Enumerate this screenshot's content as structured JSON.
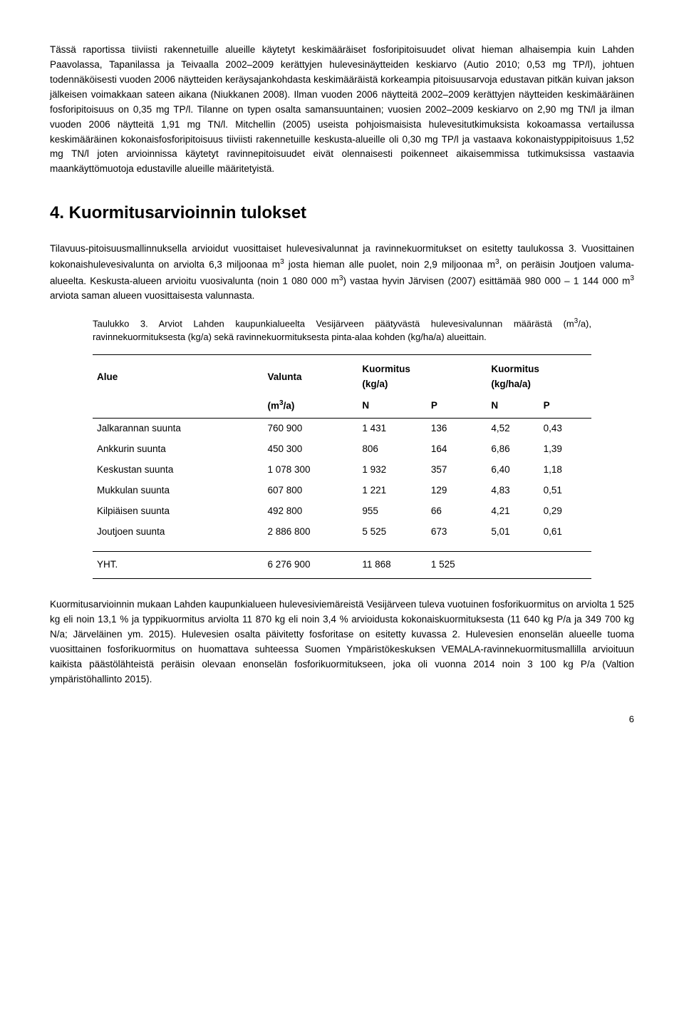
{
  "para1": "Tässä raportissa tiiviisti rakennetuille alueille käytetyt keskimääräiset fosforipitoisuudet olivat hieman alhaisempia kuin Lahden Paavolassa, Tapanilassa ja Teivaalla 2002–2009 kerättyjen hulevesinäytteiden keskiarvo (Autio 2010; 0,53 mg TP/l), johtuen todennäköisesti vuoden 2006 näytteiden keräysajankohdasta keskimääräistä korkeampia pitoisuusarvoja edustavan pitkän kuivan jakson jälkeisen voimakkaan sateen aikana (Niukkanen 2008). Ilman vuoden 2006 näytteitä 2002–2009 kerättyjen näytteiden keskimääräinen fosforipitoisuus on 0,35 mg TP/l. Tilanne on typen osalta samansuuntainen; vuosien 2002–2009 keskiarvo on 2,90 mg TN/l ja ilman vuoden 2006 näytteitä 1,91 mg TN/l. Mitchellin (2005) useista pohjoismaisista hulevesitutkimuksista kokoamassa vertailussa keskimääräinen kokonaisfosforipitoisuus tiiviisti rakennetuille keskusta-alueille oli 0,30 mg TP/l ja vastaava kokonaistyppipitoisuus 1,52 mg TN/l joten arvioinnissa käytetyt ravinnepitoisuudet eivät olennaisesti poikenneet aikaisemmissa tutkimuksissa vastaavia maankäyttömuotoja edustaville alueille määritetyistä.",
  "section_heading": "4. Kuormitusarvioinnin tulokset",
  "para2_a": "Tilavuus-pitoisuusmallinnuksella arvioidut vuosittaiset hulevesivalunnat ja ravinnekuormitukset on esitetty taulukossa 3. Vuosittainen kokonaishulevesivalunta on arviolta 6,3 miljoonaa m",
  "para2_b": " josta hieman alle puolet, noin 2,9 miljoonaa m",
  "para2_c": ", on peräisin Joutjoen valuma-alueelta. Keskusta-alueen arvioitu vuosivalunta (noin 1 080 000 m",
  "para2_d": ") vastaa hyvin Järvisen (2007) esittämää 980 000 – 1 144 000 m",
  "para2_e": " arviota saman alueen vuosittaisesta valunnasta.",
  "table": {
    "caption_a": "Taulukko 3. Arviot Lahden kaupunkialueelta Vesijärveen päätyvästä hulevesivalunnan määrästä (m",
    "caption_b": "/a), ravinnekuormituksesta (kg/a) sekä ravinnekuormituksesta pinta-alaa kohden (kg/ha/a) alueittain.",
    "columns": {
      "alue": "Alue",
      "valunta": "Valunta",
      "valunta_unit_a": "(m",
      "valunta_unit_b": "/a)",
      "kuormitus1": "Kuormitus",
      "kuormitus1_unit": "(kg/a)",
      "kuormitus2": "Kuormitus",
      "kuormitus2_unit": "(kg/ha/a)",
      "n": "N",
      "p": "P"
    },
    "rows": [
      {
        "alue": "Jalkarannan suunta",
        "valunta": "760 900",
        "n1": "1 431",
        "p1": "136",
        "n2": "4,52",
        "p2": "0,43"
      },
      {
        "alue": "Ankkurin suunta",
        "valunta": "450 300",
        "n1": "806",
        "p1": "164",
        "n2": "6,86",
        "p2": "1,39"
      },
      {
        "alue": "Keskustan suunta",
        "valunta": "1 078 300",
        "n1": "1 932",
        "p1": "357",
        "n2": "6,40",
        "p2": "1,18"
      },
      {
        "alue": "Mukkulan suunta",
        "valunta": "607 800",
        "n1": "1 221",
        "p1": "129",
        "n2": "4,83",
        "p2": "0,51"
      },
      {
        "alue": "Kilpiäisen suunta",
        "valunta": "492 800",
        "n1": "955",
        "p1": "66",
        "n2": "4,21",
        "p2": "0,29"
      },
      {
        "alue": "Joutjoen suunta",
        "valunta": "2 886 800",
        "n1": "5 525",
        "p1": "673",
        "n2": "5,01",
        "p2": "0,61"
      }
    ],
    "total": {
      "alue": "YHT.",
      "valunta": "6 276 900",
      "n1": "11 868",
      "p1": "1 525",
      "n2": "",
      "p2": ""
    }
  },
  "para3": "Kuormitusarvioinnin mukaan Lahden kaupunkialueen hulevesiviemäreistä Vesijärveen tuleva vuotuinen fosforikuormitus on arviolta 1 525 kg eli noin 13,1 % ja typpikuormitus arviolta 11 870 kg eli noin 3,4 % arvioidusta kokonaiskuormituksesta (11 640 kg P/a ja 349 700 kg N/a; Järveläinen ym. 2015). Hulevesien osalta päivitetty fosforitase on esitetty kuvassa 2. Hulevesien enonselän alueelle tuoma vuosittainen fosforikuormitus on huomattava suhteessa Suomen Ympäristökeskuksen VEMALA-ravinnekuormitusmallilla arvioituun kaikista päästölähteistä peräisin olevaan enonselän fosforikuormitukseen, joka oli vuonna 2014 noin 3 100 kg P/a (Valtion ympäristöhallinto 2015).",
  "page_number": "6",
  "sup3": "3"
}
